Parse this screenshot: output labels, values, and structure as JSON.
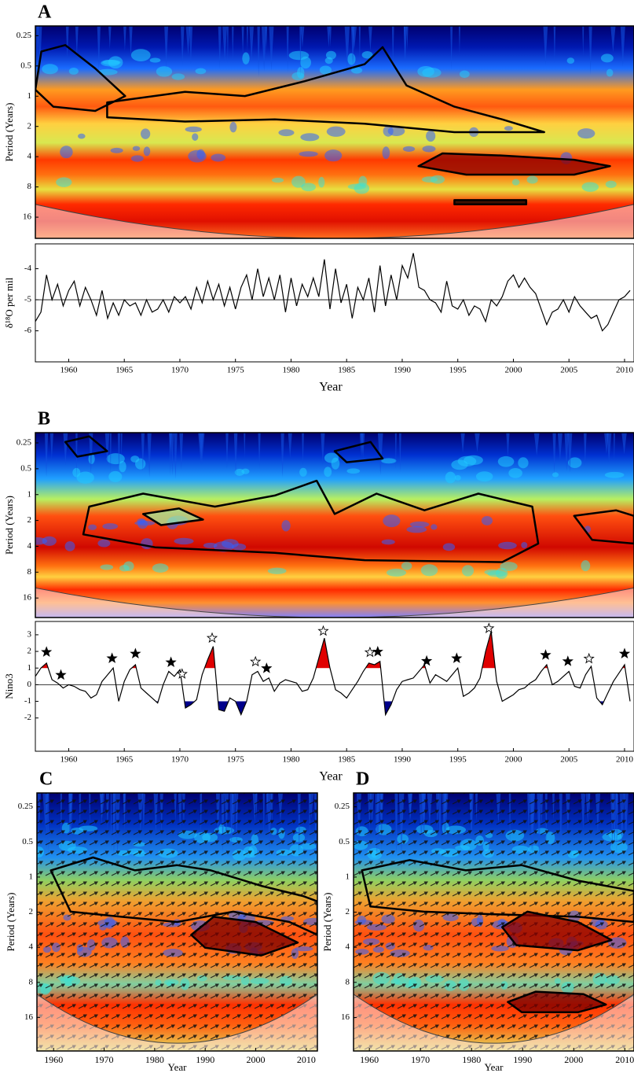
{
  "chart_data": [
    {
      "type": "wavelet",
      "panel": "A",
      "ylabel": "Period (Years)",
      "log_y": true,
      "ylim": [
        26,
        0.2
      ],
      "yticks": [
        0.25,
        0.5,
        1,
        2,
        4,
        8,
        16
      ],
      "xlim": [
        1957,
        2010.85
      ]
    },
    {
      "type": "line",
      "ylabel": "δ¹⁸O per mil",
      "xlabel": "Year",
      "xlim": [
        1957,
        2010.85
      ],
      "ylim": [
        -7,
        -3.2
      ],
      "yticks": [
        -6,
        -5,
        -4
      ],
      "xticks": [
        1960,
        1965,
        1970,
        1975,
        1980,
        1985,
        1990,
        1995,
        2000,
        2005,
        2010
      ],
      "reference_line": -5,
      "color": "#000000",
      "x": [
        1957,
        1957.5,
        1958,
        1958.5,
        1959,
        1959.5,
        1960,
        1960.5,
        1961,
        1961.5,
        1962,
        1962.5,
        1963,
        1963.5,
        1964,
        1964.5,
        1965,
        1965.5,
        1966,
        1966.5,
        1967,
        1967.5,
        1968,
        1968.5,
        1969,
        1969.5,
        1970,
        1970.5,
        1971,
        1971.5,
        1972,
        1972.5,
        1973,
        1973.5,
        1974,
        1974.5,
        1975,
        1975.5,
        1976,
        1976.5,
        1977,
        1977.5,
        1978,
        1978.5,
        1979,
        1979.5,
        1980,
        1980.5,
        1981,
        1981.5,
        1982,
        1982.5,
        1983,
        1983.5,
        1984,
        1984.5,
        1985,
        1985.5,
        1986,
        1986.5,
        1987,
        1987.5,
        1988,
        1988.5,
        1989,
        1989.5,
        1990,
        1990.5,
        1991,
        1991.5,
        1992,
        1992.5,
        1993,
        1993.5,
        1994,
        1994.5,
        1995,
        1995.5,
        1996,
        1996.5,
        1997,
        1997.5,
        1998,
        1998.5,
        1999,
        1999.5,
        2000,
        2000.5,
        2001,
        2001.5,
        2002,
        2002.5,
        2003,
        2003.5,
        2004,
        2004.5,
        2005,
        2005.5,
        2006,
        2006.5,
        2007,
        2007.5,
        2008,
        2008.5,
        2009,
        2009.5,
        2010,
        2010.5
      ],
      "values": [
        -5.7,
        -5.4,
        -4.2,
        -5.0,
        -4.5,
        -5.2,
        -4.7,
        -4.4,
        -5.2,
        -4.6,
        -5.0,
        -5.5,
        -4.7,
        -5.6,
        -5.1,
        -5.5,
        -5.0,
        -5.2,
        -5.1,
        -5.5,
        -5.0,
        -5.4,
        -5.3,
        -5.0,
        -5.4,
        -4.9,
        -5.1,
        -4.9,
        -5.3,
        -4.6,
        -5.1,
        -4.4,
        -5.0,
        -4.5,
        -5.2,
        -4.6,
        -5.3,
        -4.6,
        -4.2,
        -5.0,
        -4.0,
        -4.9,
        -4.3,
        -5.0,
        -4.2,
        -5.4,
        -4.3,
        -5.2,
        -4.5,
        -4.9,
        -4.3,
        -4.9,
        -3.7,
        -5.3,
        -4.0,
        -5.1,
        -4.5,
        -5.6,
        -4.6,
        -5.0,
        -4.3,
        -5.4,
        -3.9,
        -5.2,
        -4.2,
        -5.0,
        -3.9,
        -4.3,
        -3.5,
        -4.6,
        -4.7,
        -5.0,
        -5.1,
        -5.4,
        -4.4,
        -5.2,
        -5.3,
        -5.0,
        -5.5,
        -5.2,
        -5.3,
        -5.7,
        -5.0,
        -5.2,
        -4.9,
        -4.4,
        -4.2,
        -4.6,
        -4.3,
        -4.6,
        -4.8,
        -5.3,
        -5.8,
        -5.4,
        -5.3,
        -5.0,
        -5.4,
        -4.9,
        -5.2,
        -5.4,
        -5.6,
        -5.5,
        -6.0,
        -5.8,
        -5.4,
        -5.0,
        -4.9,
        -4.7
      ]
    },
    {
      "type": "wavelet",
      "panel": "B",
      "ylabel": "Period (Years)",
      "log_y": true,
      "ylim": [
        27,
        0.19
      ],
      "yticks": [
        0.25,
        0.5,
        1,
        2,
        4,
        8,
        16
      ],
      "xlim": [
        1957,
        2010.85
      ]
    },
    {
      "type": "line",
      "ylabel": "Nino3",
      "xlabel": "Year",
      "xlim": [
        1957,
        2010.85
      ],
      "ylim": [
        -4,
        3.8
      ],
      "yticks": [
        -2,
        -1,
        0,
        1,
        2,
        3
      ],
      "xticks": [
        1960,
        1965,
        1970,
        1975,
        1980,
        1985,
        1990,
        1995,
        2000,
        2005,
        2010
      ],
      "reference_line": 0,
      "color": "#000000",
      "fill_above": 1,
      "fill_above_color": "#e00000",
      "fill_below": -1,
      "fill_below_color": "#00008b",
      "x": [
        1957,
        1957.5,
        1958,
        1958.5,
        1959,
        1959.5,
        1960,
        1960.5,
        1961,
        1961.5,
        1962,
        1962.5,
        1963,
        1963.5,
        1964,
        1964.5,
        1965,
        1965.5,
        1966,
        1966.5,
        1967,
        1967.5,
        1968,
        1968.5,
        1969,
        1969.5,
        1970,
        1970.5,
        1971,
        1971.5,
        1972,
        1972.5,
        1973,
        1973.5,
        1974,
        1974.5,
        1975,
        1975.5,
        1976,
        1976.5,
        1977,
        1977.5,
        1978,
        1978.5,
        1979,
        1979.5,
        1980,
        1980.5,
        1981,
        1981.5,
        1982,
        1982.5,
        1983,
        1983.5,
        1984,
        1984.5,
        1985,
        1985.5,
        1986,
        1986.5,
        1987,
        1987.5,
        1988,
        1988.5,
        1989,
        1989.5,
        1990,
        1990.5,
        1991,
        1991.5,
        1992,
        1992.5,
        1993,
        1993.5,
        1994,
        1994.5,
        1995,
        1995.5,
        1996,
        1996.5,
        1997,
        1997.5,
        1998,
        1998.5,
        1999,
        1999.5,
        2000,
        2000.5,
        2001,
        2001.5,
        2002,
        2002.5,
        2003,
        2003.5,
        2004,
        2004.5,
        2005,
        2005.5,
        2006,
        2006.5,
        2007,
        2007.5,
        2008,
        2008.5,
        2009,
        2009.5,
        2010,
        2010.5
      ],
      "values": [
        0.5,
        1.0,
        1.3,
        0.3,
        0.1,
        -0.2,
        0.0,
        -0.1,
        -0.3,
        -0.4,
        -0.8,
        -0.6,
        0.2,
        0.6,
        1.0,
        -1.0,
        0.2,
        0.9,
        1.2,
        -0.2,
        -0.5,
        -0.8,
        -1.1,
        0.0,
        0.8,
        0.5,
        0.9,
        -1.4,
        -1.2,
        -0.9,
        0.6,
        1.5,
        2.3,
        -1.5,
        -1.6,
        -0.8,
        -1.0,
        -1.8,
        -1.0,
        0.6,
        0.8,
        0.2,
        0.4,
        -0.4,
        0.1,
        0.3,
        0.2,
        0.1,
        -0.4,
        -0.3,
        0.4,
        1.6,
        2.8,
        1.0,
        -0.3,
        -0.5,
        -0.8,
        -0.3,
        0.2,
        0.8,
        1.3,
        1.2,
        1.4,
        -1.8,
        -1.2,
        -0.3,
        0.2,
        0.3,
        0.4,
        0.8,
        1.2,
        0.1,
        0.6,
        0.4,
        0.2,
        0.6,
        1.0,
        -0.7,
        -0.5,
        -0.2,
        0.4,
        2.0,
        3.2,
        0.2,
        -1.0,
        -0.8,
        -0.6,
        -0.3,
        -0.2,
        0.1,
        0.3,
        0.8,
        1.2,
        0.0,
        0.2,
        0.5,
        0.8,
        -0.1,
        -0.2,
        0.6,
        1.1,
        -0.8,
        -1.2,
        -0.5,
        0.2,
        0.7,
        1.2,
        -1.0
      ],
      "events": [
        {
          "x": 1958,
          "kind": "filled"
        },
        {
          "x": 1959.3,
          "kind": "filled"
        },
        {
          "x": 1963.9,
          "kind": "filled"
        },
        {
          "x": 1966,
          "kind": "filled"
        },
        {
          "x": 1969.2,
          "kind": "filled"
        },
        {
          "x": 1970.2,
          "kind": "open"
        },
        {
          "x": 1972.9,
          "kind": "open"
        },
        {
          "x": 1976.8,
          "kind": "open"
        },
        {
          "x": 1977.8,
          "kind": "filled"
        },
        {
          "x": 1982.9,
          "kind": "open"
        },
        {
          "x": 1987.1,
          "kind": "open"
        },
        {
          "x": 1987.8,
          "kind": "filled"
        },
        {
          "x": 1992.2,
          "kind": "filled"
        },
        {
          "x": 1994.9,
          "kind": "filled"
        },
        {
          "x": 1997.8,
          "kind": "open"
        },
        {
          "x": 2002.9,
          "kind": "filled"
        },
        {
          "x": 2004.9,
          "kind": "filled"
        },
        {
          "x": 2006.8,
          "kind": "open"
        },
        {
          "x": 2010,
          "kind": "filled"
        }
      ]
    },
    {
      "type": "wavelet",
      "panel": "C",
      "ylabel": "Period (Years)",
      "xlabel": "Year",
      "log_y": true,
      "ylim": [
        31,
        0.19
      ],
      "yticks": [
        0.25,
        0.5,
        1,
        2,
        4,
        8,
        16
      ],
      "xlim": [
        1956.7,
        2012.2
      ],
      "xticks": [
        1960,
        1970,
        1980,
        1990,
        2000,
        2010
      ],
      "arrows": true
    },
    {
      "type": "wavelet",
      "panel": "D",
      "ylabel": "Period (Years)",
      "xlabel": "Year",
      "log_y": true,
      "ylim": [
        31,
        0.19
      ],
      "yticks": [
        0.25,
        0.5,
        1,
        2,
        4,
        8,
        16
      ],
      "xlim": [
        1956.9,
        2011.8
      ],
      "xticks": [
        1960,
        1970,
        1980,
        1990,
        2000,
        2010
      ],
      "arrows": true
    }
  ]
}
